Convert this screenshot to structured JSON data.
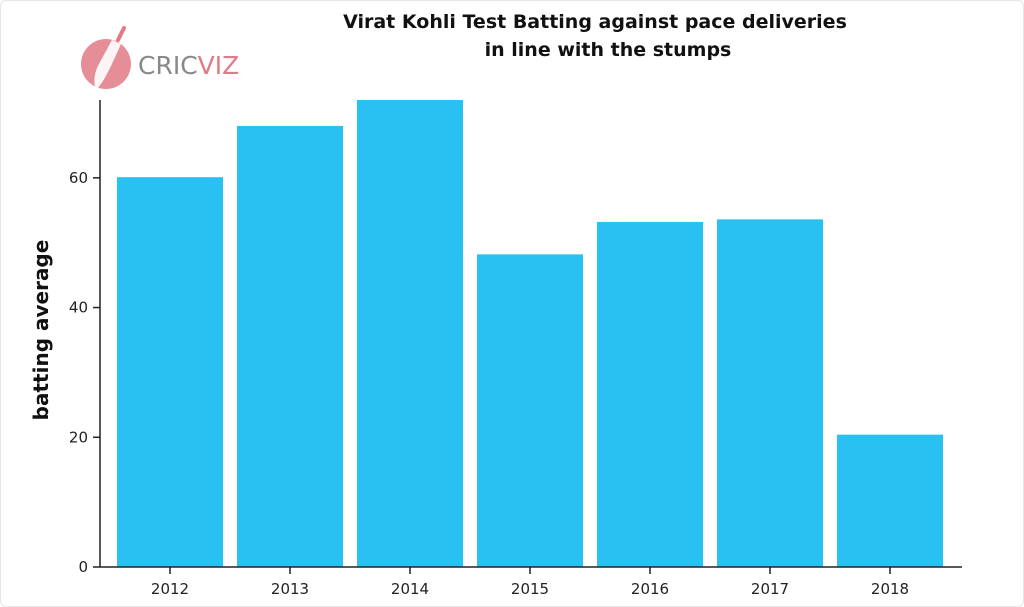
{
  "logo": {
    "text_a": "CRIC",
    "text_b": "VIZ",
    "color": "#e07a85"
  },
  "chart_data": {
    "type": "bar",
    "title_lines": [
      "Virat Kohli Test Batting against pace deliveries",
      "in line with the stumps"
    ],
    "xlabel": "",
    "ylabel": "batting average",
    "categories": [
      "2012",
      "2013",
      "2014",
      "2015",
      "2016",
      "2017",
      "2018"
    ],
    "values": [
      60.1,
      68.0,
      72.0,
      48.2,
      53.2,
      53.6,
      20.4
    ],
    "ylim": [
      0,
      72
    ],
    "yticks": [
      0,
      20,
      40,
      60
    ],
    "grid": false,
    "legend": "none",
    "bar_color": "#29c1f2",
    "axis_color": "#222222"
  }
}
